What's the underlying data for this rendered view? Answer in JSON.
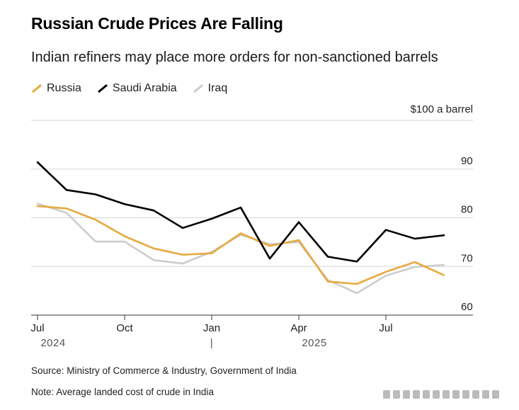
{
  "title": "Russian Crude Prices Are Falling",
  "subtitle": "Indian refiners may place more orders for non-sanctioned barrels",
  "source": "Source: Ministry of Commerce & Industry, Government of India",
  "note": "Note: Average landed cost of crude in India",
  "chart_data": {
    "type": "line",
    "unit_label": "$100 a barrel",
    "x": [
      "2024-07",
      "2024-08",
      "2024-09",
      "2024-10",
      "2024-11",
      "2024-12",
      "2025-01",
      "2025-02",
      "2025-03",
      "2025-04",
      "2025-05",
      "2025-06",
      "2025-07",
      "2025-08",
      "2025-09"
    ],
    "x_ticks": [
      {
        "label": "Jul",
        "year": "2024",
        "index": 0
      },
      {
        "label": "Oct",
        "index": 3
      },
      {
        "label": "Jan",
        "year": "|",
        "index": 6
      },
      {
        "label": "Apr",
        "year": "2025",
        "index": 9
      },
      {
        "label": "Jul",
        "index": 12
      }
    ],
    "y_ticks": [
      60,
      70,
      80,
      90
    ],
    "ylim": [
      60,
      100
    ],
    "grid": true,
    "y_axis_position": "right",
    "legend_placement": "top-left",
    "series": [
      {
        "name": "Russia",
        "color": "#e8a83e",
        "values": [
          82.4,
          81.9,
          79.6,
          76.2,
          73.7,
          72.4,
          72.7,
          76.8,
          74.2,
          75.4,
          66.9,
          66.4,
          68.9,
          70.9,
          68.2
        ]
      },
      {
        "name": "Saudi Arabia",
        "color": "#000000",
        "values": [
          91.4,
          85.7,
          84.8,
          82.8,
          81.5,
          77.9,
          79.8,
          82.1,
          71.6,
          79.1,
          72.0,
          71.0,
          77.5,
          75.7,
          76.4
        ]
      },
      {
        "name": "Iraq",
        "color": "#cccccc",
        "values": [
          82.9,
          81.0,
          75.1,
          75.1,
          71.3,
          70.6,
          73.0,
          76.5,
          74.6,
          75.0,
          67.2,
          64.5,
          68.1,
          69.9,
          70.3
        ]
      }
    ]
  }
}
